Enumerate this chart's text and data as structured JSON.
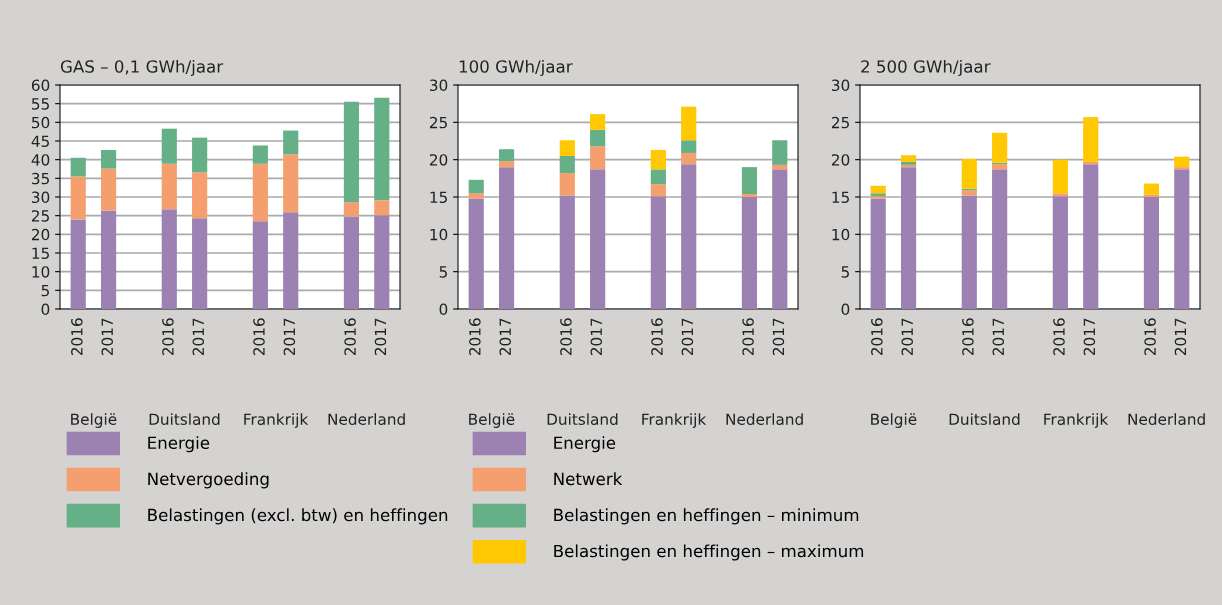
{
  "chart_data": [
    {
      "type": "bar",
      "stacked": true,
      "title": "GAS – 0,1 GWh/jaar",
      "categories": [
        "2016",
        "2017",
        null,
        "2016",
        "2017",
        null,
        "2016",
        "2017",
        null,
        "2016",
        "2017"
      ],
      "annotations": [
        "België",
        "Duitsland",
        "Frankrijk",
        "Nederland"
      ],
      "ylim": [
        0,
        60
      ],
      "yticks": [
        0,
        5,
        10,
        15,
        20,
        25,
        30,
        35,
        40,
        45,
        50,
        55,
        60
      ],
      "grid": "y",
      "legend": "bottom",
      "series": [
        {
          "name": "Energie",
          "color": "#9b82b2",
          "values": [
            24.0,
            26.4,
            null,
            26.7,
            24.3,
            null,
            23.5,
            25.9,
            null,
            24.8,
            25.1
          ]
        },
        {
          "name": "Netvergoeding",
          "color": "#f59e6e",
          "values": [
            11.5,
            11.2,
            null,
            12.2,
            12.3,
            null,
            15.4,
            15.5,
            null,
            3.8,
            4.0
          ]
        },
        {
          "name": "Belastingen (excl. btw) en heffingen",
          "color": "#66b088",
          "values": [
            5.0,
            5.0,
            null,
            9.4,
            9.3,
            null,
            4.9,
            6.4,
            null,
            26.9,
            27.5
          ]
        }
      ]
    },
    {
      "type": "bar",
      "stacked": true,
      "title": "100 GWh/jaar",
      "categories": [
        "2016",
        "2017",
        null,
        "2016",
        "2017",
        null,
        "2016",
        "2017",
        null,
        "2016",
        "2017"
      ],
      "annotations": [
        "België",
        "Duitsland",
        "Frankrijk",
        "Nederland"
      ],
      "ylim": [
        0,
        30
      ],
      "yticks": [
        0,
        5,
        10,
        15,
        20,
        25,
        30
      ],
      "grid": "y",
      "legend": "bottom",
      "series": [
        {
          "name": "Energie",
          "color": "#9b82b2",
          "values": [
            14.8,
            19.0,
            null,
            15.2,
            18.7,
            null,
            15.1,
            19.4,
            null,
            15.0,
            18.7
          ]
        },
        {
          "name": "Netwerk",
          "color": "#f59e6e",
          "values": [
            0.7,
            0.8,
            null,
            3.0,
            3.1,
            null,
            1.6,
            1.5,
            null,
            0.4,
            0.6
          ]
        },
        {
          "name": "Belastingen en heffingen – minimum",
          "color": "#66b088",
          "values": [
            1.8,
            1.6,
            null,
            2.3,
            2.2,
            null,
            2.0,
            1.7,
            null,
            3.6,
            3.3
          ]
        },
        {
          "name": "Belastingen en heffingen – maximum",
          "color": "#ffc800",
          "values": [
            0,
            0,
            null,
            2.1,
            2.1,
            null,
            2.6,
            4.5,
            null,
            0,
            0
          ]
        }
      ]
    },
    {
      "type": "bar",
      "stacked": true,
      "title": "2 500 GWh/jaar",
      "categories": [
        "2016",
        "2017",
        null,
        "2016",
        "2017",
        null,
        "2016",
        "2017",
        null,
        "2016",
        "2017"
      ],
      "annotations": [
        "België",
        "Duitsland",
        "Frankrijk",
        "Nederland"
      ],
      "ylim": [
        0,
        30
      ],
      "yticks": [
        0,
        5,
        10,
        15,
        20,
        25,
        30
      ],
      "grid": "y",
      "series": [
        {
          "color": "#9b82b2",
          "values": [
            14.8,
            19.0,
            null,
            15.2,
            18.7,
            null,
            15.1,
            19.4,
            null,
            15.0,
            18.7
          ]
        },
        {
          "color": "#f59e6e",
          "values": [
            0.3,
            0.3,
            null,
            0.7,
            0.7,
            null,
            0.4,
            0.3,
            null,
            0.3,
            0.3
          ]
        },
        {
          "color": "#66b088",
          "values": [
            0.4,
            0.4,
            null,
            0.2,
            0.2,
            null,
            0,
            0,
            null,
            0,
            0
          ]
        },
        {
          "color": "#ffc800",
          "values": [
            1.0,
            0.9,
            null,
            4.0,
            4.0,
            null,
            4.5,
            6.0,
            null,
            1.5,
            1.4
          ]
        }
      ]
    }
  ]
}
